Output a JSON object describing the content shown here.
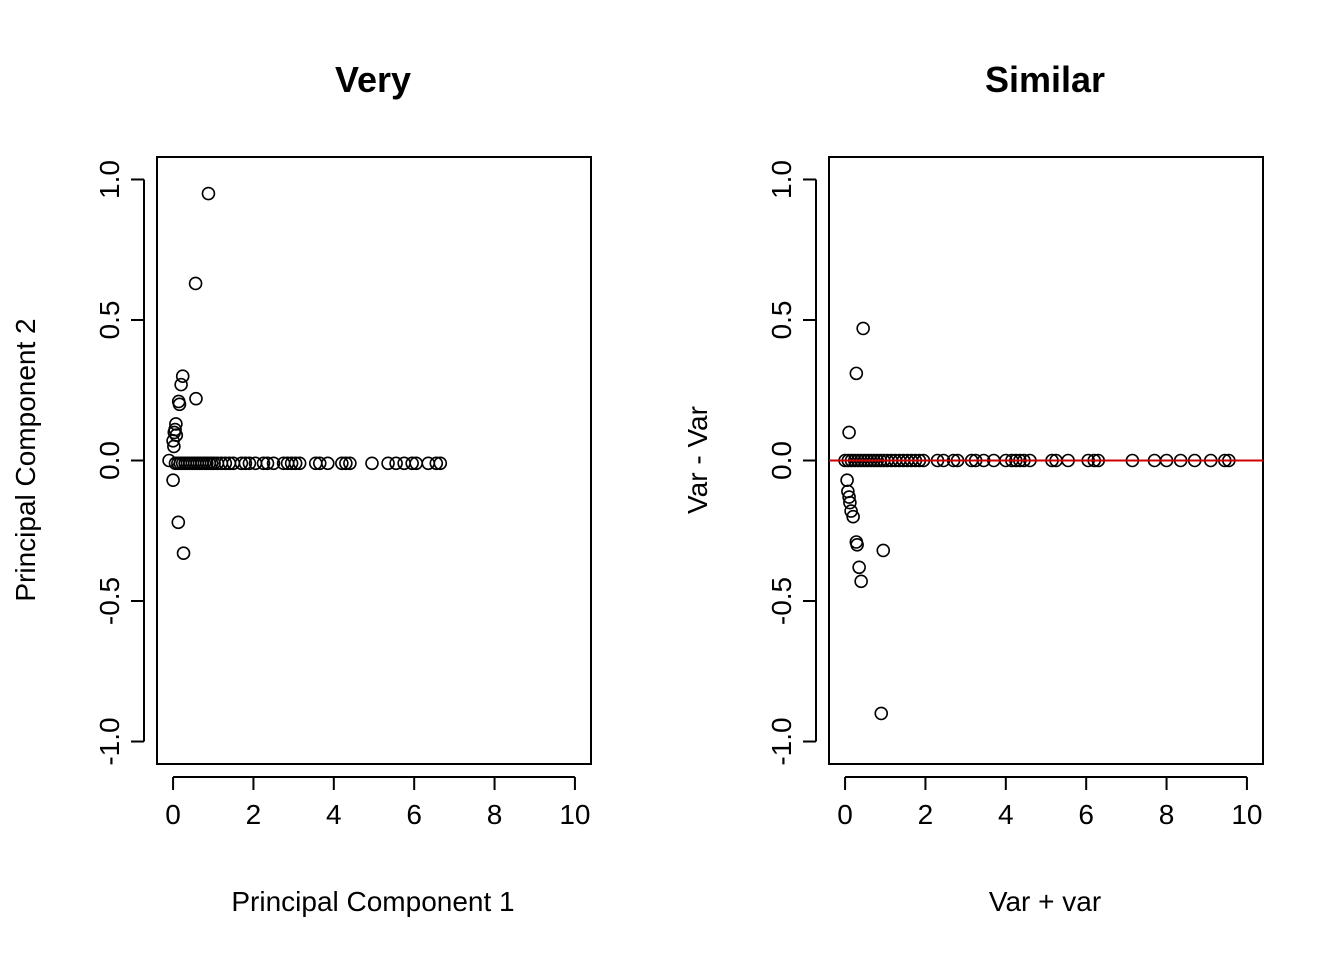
{
  "chart_data": [
    {
      "type": "scatter",
      "title": "Very",
      "xlabel": "Principal Component 1",
      "ylabel": "Principal Component 2",
      "xlim": [
        -0.4,
        10.4
      ],
      "ylim": [
        -1.08,
        1.08
      ],
      "xticks": [
        "0",
        "2",
        "4",
        "6",
        "8",
        "10"
      ],
      "yticks": [
        "-1.0",
        "-0.5",
        "0.0",
        "0.5",
        "1.0"
      ],
      "grid": false,
      "hline": null,
      "series": [
        {
          "marker": "open-circle",
          "color": "#000000",
          "points": [
            [
              0.88,
              0.95
            ],
            [
              0.56,
              0.63
            ],
            [
              0.24,
              0.3
            ],
            [
              0.2,
              0.27
            ],
            [
              0.57,
              0.22
            ],
            [
              0.14,
              0.21
            ],
            [
              0.16,
              0.2
            ],
            [
              0.07,
              0.13
            ],
            [
              0.05,
              0.11
            ],
            [
              0.03,
              0.1
            ],
            [
              0.08,
              0.09
            ],
            [
              0.0,
              0.07
            ],
            [
              0.02,
              0.05
            ],
            [
              -0.1,
              0.0
            ],
            [
              0.06,
              -0.01
            ],
            [
              0.12,
              -0.01
            ],
            [
              0.18,
              -0.01
            ],
            [
              0.24,
              -0.01
            ],
            [
              0.3,
              -0.01
            ],
            [
              0.36,
              -0.01
            ],
            [
              0.42,
              -0.01
            ],
            [
              0.48,
              -0.01
            ],
            [
              0.54,
              -0.01
            ],
            [
              0.6,
              -0.01
            ],
            [
              0.66,
              -0.01
            ],
            [
              0.72,
              -0.01
            ],
            [
              0.78,
              -0.01
            ],
            [
              0.84,
              -0.01
            ],
            [
              0.9,
              -0.01
            ],
            [
              0.96,
              -0.01
            ],
            [
              1.02,
              -0.01
            ],
            [
              1.1,
              -0.01
            ],
            [
              1.2,
              -0.01
            ],
            [
              1.3,
              -0.01
            ],
            [
              1.4,
              -0.01
            ],
            [
              1.5,
              -0.01
            ],
            [
              1.7,
              -0.01
            ],
            [
              1.8,
              -0.01
            ],
            [
              1.9,
              -0.01
            ],
            [
              2.05,
              -0.01
            ],
            [
              2.25,
              -0.01
            ],
            [
              2.35,
              -0.01
            ],
            [
              2.5,
              -0.01
            ],
            [
              2.75,
              -0.01
            ],
            [
              2.85,
              -0.01
            ],
            [
              2.95,
              -0.01
            ],
            [
              3.05,
              -0.01
            ],
            [
              3.15,
              -0.01
            ],
            [
              3.55,
              -0.01
            ],
            [
              3.65,
              -0.01
            ],
            [
              3.85,
              -0.01
            ],
            [
              4.2,
              -0.01
            ],
            [
              4.3,
              -0.01
            ],
            [
              4.4,
              -0.01
            ],
            [
              4.95,
              -0.01
            ],
            [
              5.35,
              -0.01
            ],
            [
              5.55,
              -0.01
            ],
            [
              5.75,
              -0.01
            ],
            [
              5.95,
              -0.01
            ],
            [
              6.05,
              -0.01
            ],
            [
              6.35,
              -0.01
            ],
            [
              6.55,
              -0.01
            ],
            [
              6.65,
              -0.01
            ],
            [
              0.0,
              -0.07
            ],
            [
              0.13,
              -0.22
            ],
            [
              0.26,
              -0.33
            ]
          ]
        }
      ]
    },
    {
      "type": "scatter",
      "title": "Similar",
      "xlabel": "Var + var",
      "ylabel": "Var - Var",
      "xlim": [
        -0.4,
        10.4
      ],
      "ylim": [
        -1.08,
        1.08
      ],
      "xticks": [
        "0",
        "2",
        "4",
        "6",
        "8",
        "10"
      ],
      "yticks": [
        "-1.0",
        "-0.5",
        "0.0",
        "0.5",
        "1.0"
      ],
      "grid": false,
      "hline": {
        "y": 0,
        "color": "#cc0000"
      },
      "series": [
        {
          "marker": "open-circle",
          "color": "#000000",
          "points": [
            [
              0.45,
              0.47
            ],
            [
              0.28,
              0.31
            ],
            [
              0.1,
              0.1
            ],
            [
              0.0,
              0.0
            ],
            [
              0.08,
              0.0
            ],
            [
              0.16,
              0.0
            ],
            [
              0.24,
              0.0
            ],
            [
              0.32,
              0.0
            ],
            [
              0.4,
              0.0
            ],
            [
              0.48,
              0.0
            ],
            [
              0.56,
              0.0
            ],
            [
              0.64,
              0.0
            ],
            [
              0.72,
              0.0
            ],
            [
              0.8,
              0.0
            ],
            [
              0.88,
              0.0
            ],
            [
              0.96,
              0.0
            ],
            [
              1.05,
              0.0
            ],
            [
              1.15,
              0.0
            ],
            [
              1.25,
              0.0
            ],
            [
              1.35,
              0.0
            ],
            [
              1.45,
              0.0
            ],
            [
              1.55,
              0.0
            ],
            [
              1.65,
              0.0
            ],
            [
              1.75,
              0.0
            ],
            [
              1.85,
              0.0
            ],
            [
              1.95,
              0.0
            ],
            [
              2.3,
              0.0
            ],
            [
              2.45,
              0.0
            ],
            [
              2.7,
              0.0
            ],
            [
              2.8,
              0.0
            ],
            [
              3.15,
              0.0
            ],
            [
              3.25,
              0.0
            ],
            [
              3.45,
              0.0
            ],
            [
              3.7,
              0.0
            ],
            [
              4.0,
              0.0
            ],
            [
              4.15,
              0.0
            ],
            [
              4.25,
              0.0
            ],
            [
              4.35,
              0.0
            ],
            [
              4.45,
              0.0
            ],
            [
              4.6,
              0.0
            ],
            [
              5.15,
              0.0
            ],
            [
              5.25,
              0.0
            ],
            [
              5.55,
              0.0
            ],
            [
              6.05,
              0.0
            ],
            [
              6.2,
              0.0
            ],
            [
              6.3,
              0.0
            ],
            [
              7.15,
              0.0
            ],
            [
              7.7,
              0.0
            ],
            [
              8.0,
              0.0
            ],
            [
              8.35,
              0.0
            ],
            [
              8.7,
              0.0
            ],
            [
              9.1,
              0.0
            ],
            [
              9.45,
              0.0
            ],
            [
              9.55,
              0.0
            ],
            [
              0.05,
              -0.07
            ],
            [
              0.07,
              -0.11
            ],
            [
              0.1,
              -0.13
            ],
            [
              0.12,
              -0.15
            ],
            [
              0.15,
              -0.18
            ],
            [
              0.2,
              -0.2
            ],
            [
              0.28,
              -0.29
            ],
            [
              0.3,
              -0.3
            ],
            [
              0.35,
              -0.38
            ],
            [
              0.4,
              -0.43
            ],
            [
              0.95,
              -0.32
            ],
            [
              0.9,
              -0.9
            ]
          ]
        }
      ]
    }
  ]
}
